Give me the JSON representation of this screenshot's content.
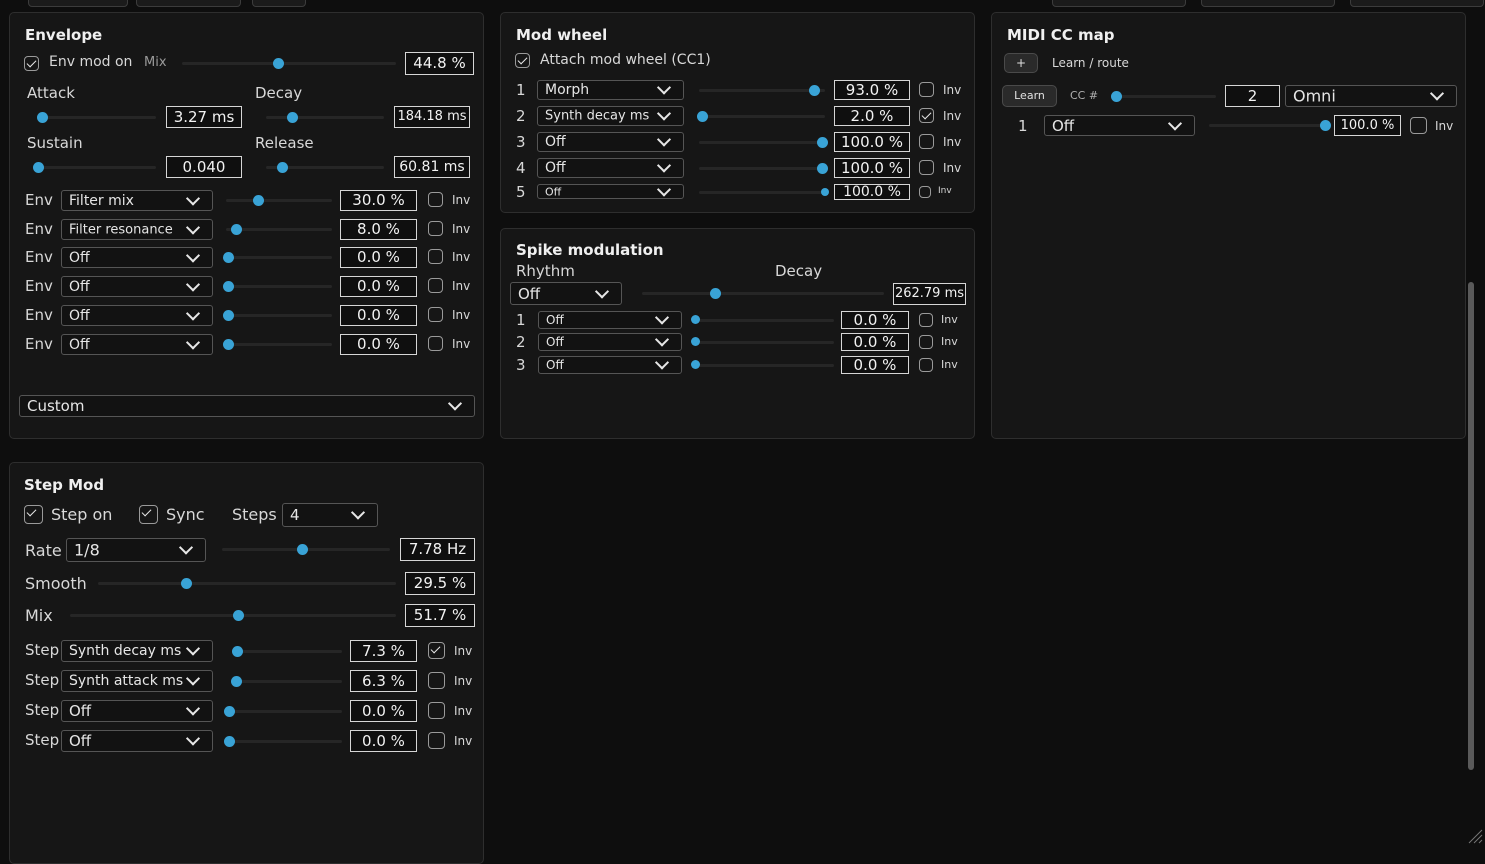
{
  "envelope": {
    "title": "Envelope",
    "env_mod_label": "Env mod on",
    "mix_label": "Mix",
    "mix_value": "44.8 %",
    "attack_label": "Attack",
    "attack_value": "3.27 ms",
    "decay_label": "Decay",
    "decay_value": "184.18 ms",
    "sustain_label": "Sustain",
    "sustain_value": "0.040",
    "release_label": "Release",
    "release_value": "60.81 ms",
    "rows": [
      {
        "label": "Env",
        "target": "Filter mix",
        "value": "30.0 %",
        "inv": "Inv"
      },
      {
        "label": "Env",
        "target": "Filter resonance",
        "value": "8.0 %",
        "inv": "Inv"
      },
      {
        "label": "Env",
        "target": "Off",
        "value": "0.0 %",
        "inv": "Inv"
      },
      {
        "label": "Env",
        "target": "Off",
        "value": "0.0 %",
        "inv": "Inv"
      },
      {
        "label": "Env",
        "target": "Off",
        "value": "0.0 %",
        "inv": "Inv"
      },
      {
        "label": "Env",
        "target": "Off",
        "value": "0.0 %",
        "inv": "Inv"
      }
    ],
    "preset": "Custom"
  },
  "modwheel": {
    "title": "Mod wheel",
    "attach_label": "Attach mod wheel (CC1)",
    "rows": [
      {
        "num": "1",
        "target": "Morph",
        "value": "93.0 %",
        "inv": "Inv"
      },
      {
        "num": "2",
        "target": "Synth decay ms",
        "value": "2.0 %",
        "inv": "Inv"
      },
      {
        "num": "3",
        "target": "Off",
        "value": "100.0 %",
        "inv": "Inv"
      },
      {
        "num": "4",
        "target": "Off",
        "value": "100.0 %",
        "inv": "Inv"
      },
      {
        "num": "5",
        "target": "Off",
        "value": "100.0 %",
        "inv": "Inv"
      }
    ]
  },
  "spike": {
    "title": "Spike modulation",
    "rhythm_label": "Rhythm",
    "rhythm_value": "Off",
    "decay_label": "Decay",
    "decay_value": "262.79 ms",
    "rows": [
      {
        "num": "1",
        "target": "Off",
        "value": "0.0 %",
        "inv": "Inv"
      },
      {
        "num": "2",
        "target": "Off",
        "value": "0.0 %",
        "inv": "Inv"
      },
      {
        "num": "3",
        "target": "Off",
        "value": "0.0 %",
        "inv": "Inv"
      }
    ]
  },
  "midi": {
    "title": "MIDI CC map",
    "add_label": "+",
    "learn_route_label": "Learn / route",
    "learn_button": "Learn",
    "cc_label": "CC #",
    "cc_value": "2",
    "channel": "Omni",
    "row": {
      "num": "1",
      "target": "Off",
      "value": "100.0 %",
      "inv": "Inv"
    }
  },
  "stepmod": {
    "title": "Step Mod",
    "step_on_label": "Step on",
    "sync_label": "Sync",
    "steps_label": "Steps",
    "steps_value": "4",
    "rate_label": "Rate",
    "rate_value": "1/8",
    "rate_hz": "7.78 Hz",
    "smooth_label": "Smooth",
    "smooth_value": "29.5 %",
    "mix_label": "Mix",
    "mix_value": "51.7 %",
    "rows": [
      {
        "label": "Step",
        "target": "Synth decay ms",
        "value": "7.3 %",
        "inv": "Inv"
      },
      {
        "label": "Step",
        "target": "Synth attack ms",
        "value": "6.3 %",
        "inv": "Inv"
      },
      {
        "label": "Step",
        "target": "Off",
        "value": "0.0 %",
        "inv": "Inv"
      },
      {
        "label": "Step",
        "target": "Off",
        "value": "0.0 %",
        "inv": "Inv"
      }
    ]
  },
  "colors": {
    "accent": "#39a3d6",
    "panel": "#161616",
    "background": "#0e0e0e"
  }
}
